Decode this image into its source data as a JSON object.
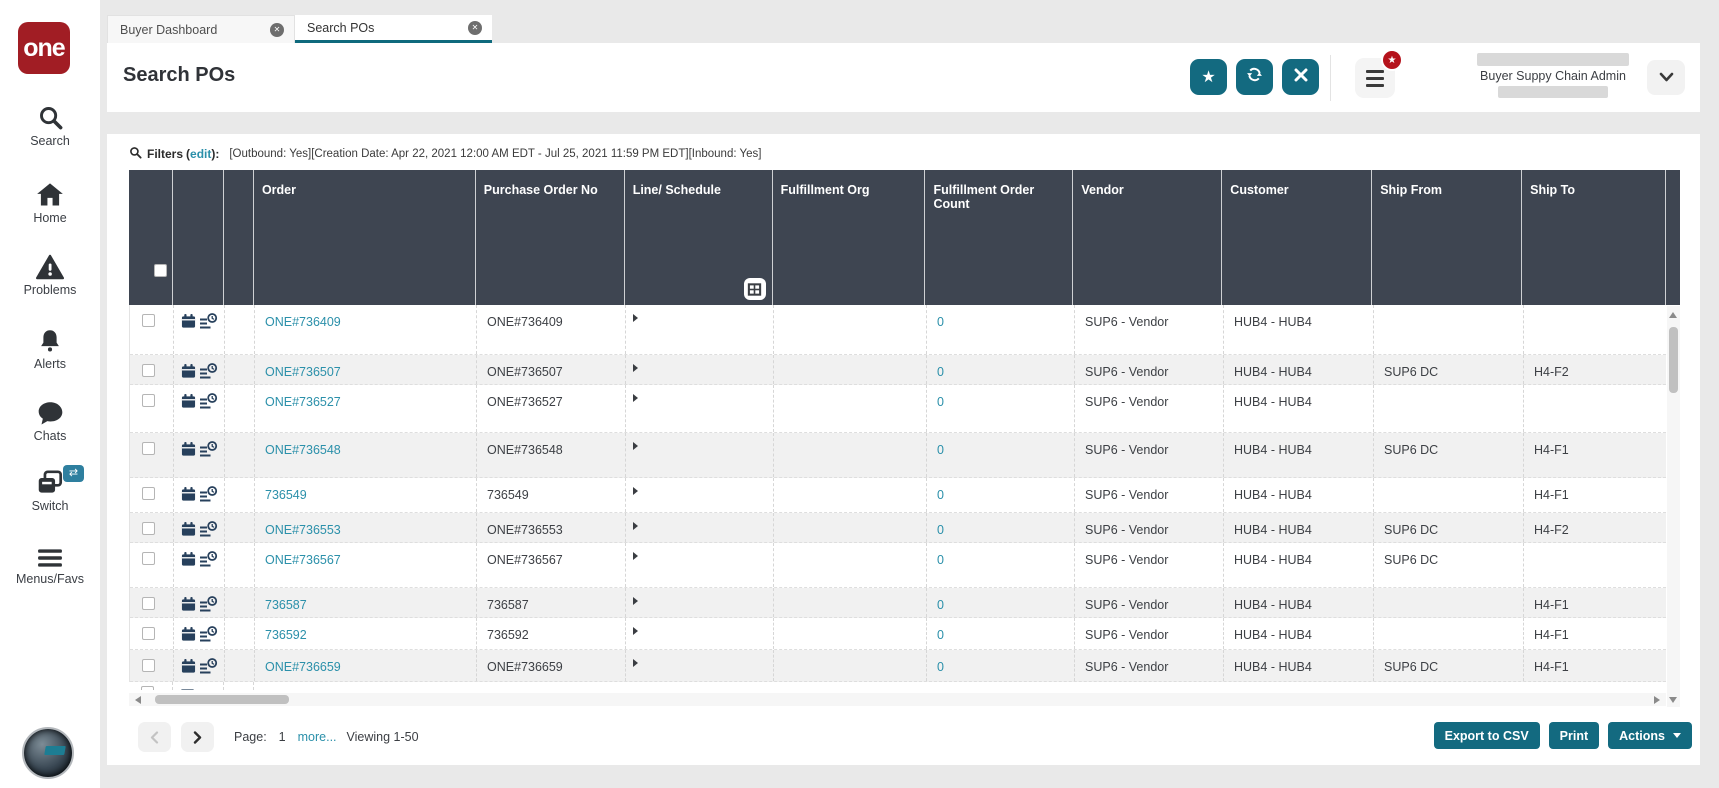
{
  "sidebar": {
    "logo_text": "one",
    "items": [
      {
        "icon": "search-icon",
        "label": "Search"
      },
      {
        "icon": "home-icon",
        "label": "Home"
      },
      {
        "icon": "problems-icon",
        "label": "Problems"
      },
      {
        "icon": "alerts-icon",
        "label": "Alerts"
      },
      {
        "icon": "chats-icon",
        "label": "Chats"
      },
      {
        "icon": "switch-icon",
        "label": "Switch"
      },
      {
        "icon": "menus-icon",
        "label": "Menus/Favs"
      }
    ]
  },
  "tabs": [
    {
      "label": "Buyer Dashboard"
    },
    {
      "label": "Search POs"
    }
  ],
  "header": {
    "title": "Search POs",
    "user_role": "Buyer Suppy Chain Admin"
  },
  "filters": {
    "label": "Filters",
    "paren_open": "(",
    "edit_link": "edit",
    "paren_close": "):",
    "summary": "[Outbound: Yes][Creation Date: Apr 22, 2021 12:00 AM EDT - Jul 25, 2021 11:59 PM EDT][Inbound: Yes]"
  },
  "table": {
    "columns": [
      "Order",
      "Purchase Order No",
      "Line/ Schedule",
      "Fulfillment Org",
      "Fulfillment Order Count",
      "Vendor",
      "Customer",
      "Ship From",
      "Ship To"
    ],
    "rows": [
      {
        "order": "ONE#736409",
        "po_no": "ONE#736409",
        "fo_count": "0",
        "vendor": "SUP6 - Vendor",
        "customer": "HUB4 - HUB4",
        "ship_from": "",
        "ship_to": ""
      },
      {
        "order": "ONE#736507",
        "po_no": "ONE#736507",
        "fo_count": "0",
        "vendor": "SUP6 - Vendor",
        "customer": "HUB4 - HUB4",
        "ship_from": "SUP6 DC",
        "ship_to": "H4-F2"
      },
      {
        "order": "ONE#736527",
        "po_no": "ONE#736527",
        "fo_count": "0",
        "vendor": "SUP6 - Vendor",
        "customer": "HUB4 - HUB4",
        "ship_from": "",
        "ship_to": ""
      },
      {
        "order": "ONE#736548",
        "po_no": "ONE#736548",
        "fo_count": "0",
        "vendor": "SUP6 - Vendor",
        "customer": "HUB4 - HUB4",
        "ship_from": "SUP6 DC",
        "ship_to": "H4-F1"
      },
      {
        "order": "736549",
        "po_no": "736549",
        "fo_count": "0",
        "vendor": "SUP6 - Vendor",
        "customer": "HUB4 - HUB4",
        "ship_from": "",
        "ship_to": "H4-F1"
      },
      {
        "order": "ONE#736553",
        "po_no": "ONE#736553",
        "fo_count": "0",
        "vendor": "SUP6 - Vendor",
        "customer": "HUB4 - HUB4",
        "ship_from": "SUP6 DC",
        "ship_to": "H4-F2"
      },
      {
        "order": "ONE#736567",
        "po_no": "ONE#736567",
        "fo_count": "0",
        "vendor": "SUP6 - Vendor",
        "customer": "HUB4 - HUB4",
        "ship_from": "SUP6 DC",
        "ship_to": ""
      },
      {
        "order": "736587",
        "po_no": "736587",
        "fo_count": "0",
        "vendor": "SUP6 - Vendor",
        "customer": "HUB4 - HUB4",
        "ship_from": "",
        "ship_to": "H4-F1"
      },
      {
        "order": "736592",
        "po_no": "736592",
        "fo_count": "0",
        "vendor": "SUP6 - Vendor",
        "customer": "HUB4 - HUB4",
        "ship_from": "",
        "ship_to": "H4-F1"
      },
      {
        "order": "ONE#736659",
        "po_no": "ONE#736659",
        "fo_count": "0",
        "vendor": "SUP6 - Vendor",
        "customer": "HUB4 - HUB4",
        "ship_from": "SUP6 DC",
        "ship_to": "H4-F1"
      }
    ]
  },
  "pagination": {
    "page_label": "Page:",
    "page_number": "1",
    "more_link": "more...",
    "viewing_text": "Viewing 1-50"
  },
  "footer": {
    "export_csv": "Export to CSV",
    "print": "Print",
    "actions": "Actions"
  },
  "colors": {
    "accent_teal": "#136a80",
    "logo_red": "#a11d24",
    "table_header_slate": "#3e4551",
    "link_teal": "#2b90aa",
    "badge_red": "#b5121b"
  }
}
